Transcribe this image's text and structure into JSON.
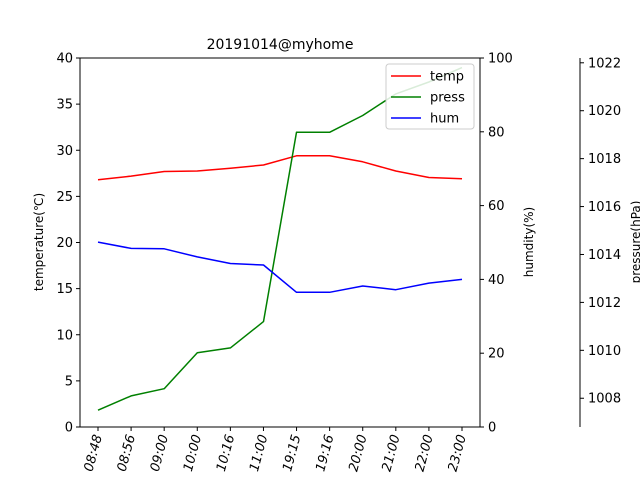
{
  "chart_data": {
    "type": "line",
    "title": "20191014@myhome",
    "categories": [
      "08:48",
      "08:56",
      "09:00",
      "10:00",
      "10:16",
      "11:00",
      "19:15",
      "19:16",
      "20:00",
      "21:00",
      "22:00",
      "23:00"
    ],
    "axes": {
      "left": {
        "label": "temperature(℃)",
        "ylim": [
          0,
          40
        ],
        "ticks": [
          0,
          5,
          10,
          15,
          20,
          25,
          30,
          35,
          40
        ]
      },
      "right": {
        "label": "humdity(%)",
        "ylim": [
          0,
          100
        ],
        "ticks": [
          0,
          20,
          40,
          60,
          80,
          100
        ]
      },
      "far_right": {
        "label": "pressure(hPa)",
        "ylim": [
          1006.8,
          1022.2
        ],
        "ticks": [
          1008,
          1010,
          1012,
          1014,
          1016,
          1018,
          1020,
          1022
        ]
      }
    },
    "series": [
      {
        "name": "temp",
        "axis": "left",
        "color": "#ff0000",
        "values": [
          26.8,
          27.2,
          27.7,
          27.75,
          28.05,
          28.4,
          29.4,
          29.4,
          28.75,
          27.75,
          27.05,
          26.9
        ]
      },
      {
        "name": "press",
        "axis": "far_right",
        "color": "#008000",
        "values": [
          1007.5,
          1008.1,
          1008.4,
          1009.9,
          1010.1,
          1011.2,
          1019.1,
          1019.1,
          1019.8,
          1020.7,
          1021.2,
          1021.8
        ]
      },
      {
        "name": "hum",
        "axis": "right",
        "color": "#0000ff",
        "values": [
          50.1,
          48.4,
          48.3,
          46.1,
          44.3,
          43.9,
          36.5,
          36.5,
          38.2,
          37.2,
          39.0,
          40.0
        ]
      }
    ],
    "legend": {
      "placement": "top-right",
      "entries": [
        "temp",
        "press",
        "hum"
      ]
    },
    "grid": false
  }
}
